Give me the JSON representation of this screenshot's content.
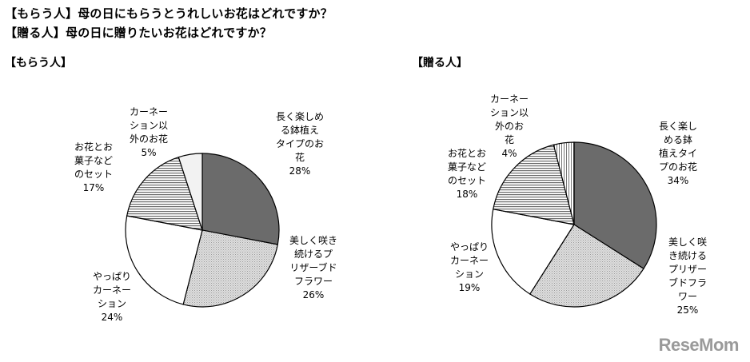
{
  "header": {
    "title_line1": "【もらう人】母の日にもらうとうれしいお花はどれですか？",
    "title_line2": "【贈る人】母の日に贈りたいお花はどれですか？"
  },
  "watermark": "ReseMom",
  "chart_data": [
    {
      "type": "pie",
      "title": "【もらう人】",
      "slices": [
        {
          "label": [
            "長く楽しめ",
            "る鉢植え",
            "タイプのお",
            "花"
          ],
          "value": 28,
          "percent_text": "28%",
          "pattern": "dark"
        },
        {
          "label": [
            "美しく咲き",
            "続けるプ",
            "リザーブド",
            "フラワー"
          ],
          "value": 26,
          "percent_text": "26%",
          "pattern": "dots"
        },
        {
          "label": [
            "やっぱり",
            "カーネー",
            "ション"
          ],
          "value": 24,
          "percent_text": "24%",
          "pattern": "white"
        },
        {
          "label": [
            "お花とお",
            "菓子など",
            "のセット"
          ],
          "value": 17,
          "percent_text": "17%",
          "pattern": "hlines"
        },
        {
          "label": [
            "カーネー",
            "ション以",
            "外のお花"
          ],
          "value": 5,
          "percent_text": "5%",
          "pattern": "light"
        }
      ]
    },
    {
      "type": "pie",
      "title": "【贈る人】",
      "slices": [
        {
          "label": [
            "長く楽し",
            "める鉢",
            "植えタイ",
            "プのお花"
          ],
          "value": 34,
          "percent_text": "34%",
          "pattern": "dark"
        },
        {
          "label": [
            "美しく咲",
            "き続ける",
            "プリザー",
            "ブドフラ",
            "ワー"
          ],
          "value": 25,
          "percent_text": "25%",
          "pattern": "dots"
        },
        {
          "label": [
            "やっぱり",
            "カーネー",
            "ション"
          ],
          "value": 19,
          "percent_text": "19%",
          "pattern": "white"
        },
        {
          "label": [
            "お花とお",
            "菓子など",
            "のセット"
          ],
          "value": 18,
          "percent_text": "18%",
          "pattern": "hlines"
        },
        {
          "label": [
            "カーネー",
            "ション以",
            "外のお",
            "花"
          ],
          "value": 4,
          "percent_text": "4%",
          "pattern": "vlines"
        }
      ]
    }
  ]
}
